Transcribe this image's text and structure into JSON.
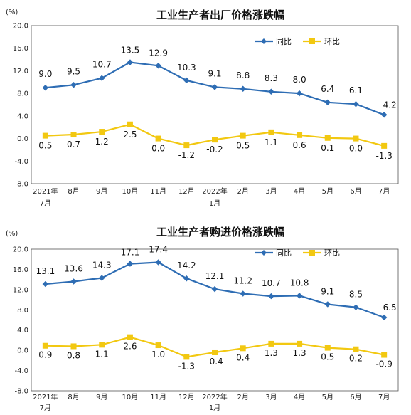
{
  "chart_data": [
    {
      "type": "line",
      "title": "工业生产者出厂价格涨跌幅",
      "unit": "(%)",
      "categories": [
        [
          "2021年",
          "7月"
        ],
        [
          "8月"
        ],
        [
          "9月"
        ],
        [
          "10月"
        ],
        [
          "11月"
        ],
        [
          "12月"
        ],
        [
          "2022年",
          "1月"
        ],
        [
          "2月"
        ],
        [
          "3月"
        ],
        [
          "4月"
        ],
        [
          "5月"
        ],
        [
          "6月"
        ],
        [
          "7月"
        ]
      ],
      "ylim": [
        -8.0,
        20.0
      ],
      "yticks": [
        "20.0",
        "16.0",
        "12.0",
        "8.0",
        "4.0",
        "0.0",
        "-4.0",
        "-8.0"
      ],
      "legend_position": "top-right",
      "series": [
        {
          "name": "同比",
          "color": "#2E6DB4",
          "marker": "diamond",
          "values": [
            9.0,
            9.5,
            10.7,
            13.5,
            12.9,
            10.3,
            9.1,
            8.8,
            8.3,
            8.0,
            6.4,
            6.1,
            4.2
          ],
          "labels": [
            "9.0",
            "9.5",
            "10.7",
            "13.5",
            "12.9",
            "10.3",
            "9.1",
            "8.8",
            "8.3",
            "8.0",
            "6.4",
            "6.1",
            "4.2"
          ]
        },
        {
          "name": "环比",
          "color": "#F2C811",
          "marker": "square",
          "values": [
            0.5,
            0.7,
            1.2,
            2.5,
            0.0,
            -1.2,
            -0.2,
            0.5,
            1.1,
            0.6,
            0.1,
            0.0,
            -1.3
          ],
          "labels": [
            "0.5",
            "0.7",
            "1.2",
            "2.5",
            "0.0",
            "-1.2",
            "-0.2",
            "0.5",
            "1.1",
            "0.6",
            "0.1",
            "0.0",
            "-1.3"
          ]
        }
      ]
    },
    {
      "type": "line",
      "title": "工业生产者购进价格涨跌幅",
      "unit": "(%)",
      "categories": [
        [
          "2021年",
          "7月"
        ],
        [
          "8月"
        ],
        [
          "9月"
        ],
        [
          "10月"
        ],
        [
          "11月"
        ],
        [
          "12月"
        ],
        [
          "2022年",
          "1月"
        ],
        [
          "2月"
        ],
        [
          "3月"
        ],
        [
          "4月"
        ],
        [
          "5月"
        ],
        [
          "6月"
        ],
        [
          "7月"
        ]
      ],
      "ylim": [
        -8.0,
        20.0
      ],
      "yticks": [
        "20.0",
        "16.0",
        "12.0",
        "8.0",
        "4.0",
        "0.0",
        "-4.0",
        "-8.0"
      ],
      "legend_position": "top-right",
      "series": [
        {
          "name": "同比",
          "color": "#2E6DB4",
          "marker": "diamond",
          "values": [
            13.1,
            13.6,
            14.3,
            17.1,
            17.4,
            14.2,
            12.1,
            11.2,
            10.7,
            10.8,
            9.1,
            8.5,
            6.5
          ],
          "labels": [
            "13.1",
            "13.6",
            "14.3",
            "17.1",
            "17.4",
            "14.2",
            "12.1",
            "11.2",
            "10.7",
            "10.8",
            "9.1",
            "8.5",
            "6.5"
          ]
        },
        {
          "name": "环比",
          "color": "#F2C811",
          "marker": "square",
          "values": [
            0.9,
            0.8,
            1.1,
            2.6,
            1.0,
            -1.3,
            -0.4,
            0.4,
            1.3,
            1.3,
            0.5,
            0.2,
            -0.9
          ],
          "labels": [
            "0.9",
            "0.8",
            "1.1",
            "2.6",
            "1.0",
            "-1.3",
            "-0.4",
            "0.4",
            "1.3",
            "1.3",
            "0.5",
            "0.2",
            "-0.9"
          ]
        }
      ]
    }
  ]
}
